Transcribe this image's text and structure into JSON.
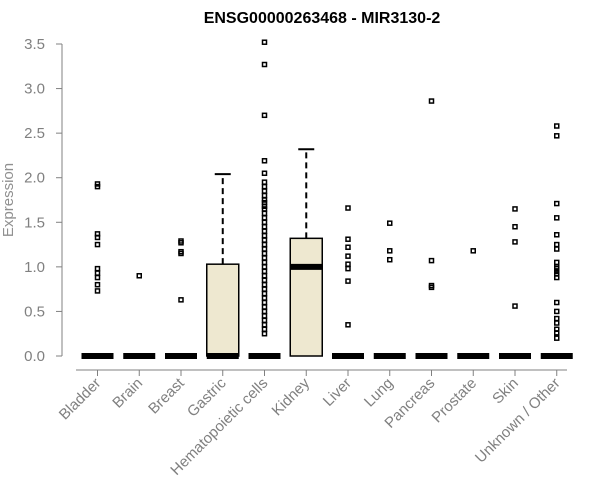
{
  "chart_data": {
    "type": "boxplot",
    "title": "ENSG00000263468 - MIR3130-2",
    "ylabel": "Expression",
    "xlabel": "",
    "ylim": [
      0,
      3.5
    ],
    "yticks": [
      "0.0",
      "0.5",
      "1.0",
      "1.5",
      "2.0",
      "2.5",
      "3.0",
      "3.5"
    ],
    "box_fill": "#EEE8D0",
    "categories": [
      "Bladder",
      "Brain",
      "Breast",
      "Gastric",
      "Hematopoietic cells",
      "Kidney",
      "Liver",
      "Lung",
      "Pancreas",
      "Prostate",
      "Skin",
      "Unknown / Other"
    ],
    "boxes": [
      {
        "min": 0,
        "q1": 0,
        "median": 0,
        "q3": 0,
        "max": 0,
        "outliers": [
          1.93,
          1.9,
          1.37,
          1.33,
          1.25,
          0.98,
          0.93,
          0.88,
          0.8,
          0.73
        ]
      },
      {
        "min": 0,
        "q1": 0,
        "median": 0,
        "q3": 0,
        "max": 0,
        "outliers": [
          0.9
        ]
      },
      {
        "min": 0,
        "q1": 0,
        "median": 0,
        "q3": 0,
        "max": 0,
        "outliers": [
          1.29,
          1.27,
          1.17,
          1.15,
          0.63
        ]
      },
      {
        "min": 0,
        "q1": 0,
        "median": 0,
        "q3": 1.03,
        "max": 2.04,
        "outliers": []
      },
      {
        "min": 0,
        "q1": 0,
        "median": 0,
        "q3": 0,
        "max": 0,
        "outliers": [
          3.52,
          3.27,
          2.7,
          2.19,
          2.05,
          1.95,
          1.9,
          1.85,
          1.8,
          1.75,
          1.72,
          1.68,
          1.65,
          1.6,
          1.55,
          1.5,
          1.45,
          1.4,
          1.35,
          1.3,
          1.25,
          1.2,
          1.15,
          1.1,
          1.05,
          1.0,
          0.95,
          0.9,
          0.85,
          0.8,
          0.75,
          0.7,
          0.65,
          0.6,
          0.55,
          0.5,
          0.45,
          0.4,
          0.35,
          0.3,
          0.25
        ]
      },
      {
        "min": 0,
        "q1": 0,
        "median": 1.0,
        "q3": 1.32,
        "max": 2.32,
        "outliers": []
      },
      {
        "min": 0,
        "q1": 0,
        "median": 0,
        "q3": 0,
        "max": 0,
        "outliers": [
          1.66,
          1.31,
          1.22,
          1.12,
          1.03,
          0.98,
          0.84,
          0.35
        ]
      },
      {
        "min": 0,
        "q1": 0,
        "median": 0,
        "q3": 0,
        "max": 0,
        "outliers": [
          1.49,
          1.18,
          1.08
        ]
      },
      {
        "min": 0,
        "q1": 0,
        "median": 0,
        "q3": 0,
        "max": 0,
        "outliers": [
          2.86,
          1.07,
          0.79,
          0.77
        ]
      },
      {
        "min": 0,
        "q1": 0,
        "median": 0,
        "q3": 0,
        "max": 0,
        "outliers": [
          1.18
        ]
      },
      {
        "min": 0,
        "q1": 0,
        "median": 0,
        "q3": 0,
        "max": 0,
        "outliers": [
          1.65,
          1.45,
          1.28,
          0.56
        ]
      },
      {
        "min": 0,
        "q1": 0,
        "median": 0,
        "q3": 0,
        "max": 0,
        "outliers": [
          2.58,
          2.47,
          1.71,
          1.55,
          1.36,
          1.25,
          1.2,
          1.05,
          1.0,
          0.98,
          0.95,
          0.92,
          0.88,
          0.6,
          0.5,
          0.42,
          0.37,
          0.3,
          0.26,
          0.2
        ]
      }
    ]
  }
}
